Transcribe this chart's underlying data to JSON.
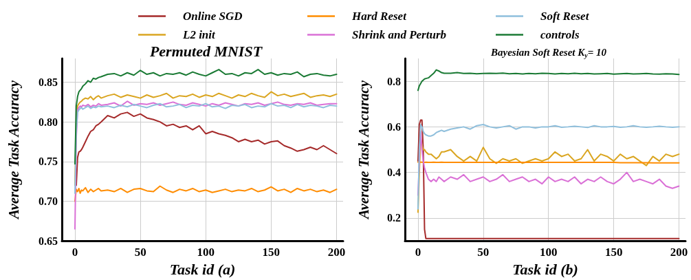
{
  "chart_data": [
    {
      "type": "line",
      "title": "Permuted MNIST",
      "xlabel": "Task id (a)",
      "ylabel": "Average Task Accuracy",
      "x": [
        0,
        1,
        2,
        3,
        4,
        5,
        6,
        8,
        10,
        12,
        14,
        16,
        18,
        20,
        25,
        30,
        35,
        40,
        45,
        50,
        55,
        60,
        65,
        70,
        75,
        80,
        85,
        90,
        95,
        100,
        105,
        110,
        115,
        120,
        125,
        130,
        135,
        140,
        145,
        150,
        155,
        160,
        165,
        170,
        175,
        180,
        185,
        190,
        195,
        200
      ],
      "xlim": [
        -10,
        205
      ],
      "xticks": [
        0,
        50,
        100,
        150,
        200
      ],
      "ylim": [
        0.65,
        0.88
      ],
      "yticks": [
        0.65,
        {
          "value": 0.7,
          "label": "0.70"
        },
        0.75,
        {
          "value": 0.8,
          "label": "0.80"
        },
        0.85
      ],
      "grid": true,
      "legend": "top",
      "marker": "none",
      "line_style": "solid",
      "series": [
        {
          "name": "Online SGD",
          "color": "#a52a2a",
          "values": [
            null,
            0.72,
            0.755,
            0.762,
            0.763,
            0.765,
            0.768,
            0.775,
            0.782,
            0.788,
            0.79,
            0.795,
            0.797,
            0.8,
            0.808,
            0.805,
            0.81,
            0.812,
            0.807,
            0.81,
            0.805,
            0.803,
            0.8,
            0.795,
            0.797,
            0.793,
            0.795,
            0.79,
            0.795,
            0.785,
            0.788,
            0.785,
            0.783,
            0.78,
            0.775,
            0.778,
            0.775,
            0.777,
            0.772,
            0.775,
            0.776,
            0.77,
            0.767,
            0.763,
            0.765,
            0.768,
            0.765,
            0.77,
            0.765,
            0.76
          ]
        },
        {
          "name": "L2 init",
          "color": "#daa520",
          "values": [
            0.72,
            0.8,
            0.82,
            0.823,
            0.825,
            0.826,
            0.828,
            0.83,
            0.829,
            0.832,
            0.828,
            0.831,
            0.833,
            0.83,
            0.833,
            0.835,
            0.831,
            0.834,
            0.832,
            0.83,
            0.834,
            0.831,
            0.833,
            0.836,
            0.83,
            0.833,
            0.832,
            0.835,
            0.831,
            0.834,
            0.832,
            0.836,
            0.833,
            0.83,
            0.834,
            0.832,
            0.836,
            0.833,
            0.831,
            0.838,
            0.833,
            0.835,
            0.832,
            0.834,
            0.836,
            0.831,
            0.833,
            0.834,
            0.832,
            0.835
          ]
        },
        {
          "name": "Hard Reset",
          "color": "#ff8c00",
          "values": [
            0.7,
            0.715,
            0.712,
            0.716,
            0.71,
            0.714,
            0.713,
            0.717,
            0.711,
            0.715,
            0.712,
            0.714,
            0.716,
            0.713,
            0.714,
            0.712,
            0.716,
            0.711,
            0.715,
            0.716,
            0.713,
            0.712,
            0.719,
            0.714,
            0.711,
            0.715,
            0.713,
            0.716,
            0.712,
            0.714,
            0.711,
            0.713,
            0.715,
            0.712,
            0.714,
            0.713,
            0.716,
            0.712,
            0.714,
            0.718,
            0.713,
            0.715,
            0.711,
            0.716,
            0.713,
            0.715,
            0.712,
            0.714,
            0.711,
            0.715
          ]
        },
        {
          "name": "Shrink and Perturb",
          "color": "#da70d6",
          "values": [
            0.665,
            0.78,
            0.815,
            0.818,
            0.82,
            0.819,
            0.821,
            0.82,
            0.822,
            0.819,
            0.821,
            0.82,
            0.823,
            0.821,
            0.822,
            0.824,
            0.82,
            0.826,
            0.821,
            0.823,
            0.822,
            0.824,
            0.821,
            0.823,
            0.825,
            0.822,
            0.821,
            0.824,
            0.822,
            0.82,
            0.823,
            0.821,
            0.824,
            0.822,
            0.82,
            0.823,
            0.822,
            0.824,
            0.821,
            0.823,
            0.825,
            0.822,
            0.821,
            0.823,
            0.822,
            0.824,
            0.821,
            0.822,
            0.823,
            0.823
          ]
        },
        {
          "name": "Soft Reset",
          "color": "#8fbfdc",
          "values": [
            0.71,
            0.79,
            0.812,
            0.815,
            0.817,
            0.818,
            0.816,
            0.818,
            0.82,
            0.817,
            0.819,
            0.818,
            0.82,
            0.819,
            0.82,
            0.818,
            0.821,
            0.819,
            0.822,
            0.82,
            0.818,
            0.821,
            0.823,
            0.819,
            0.82,
            0.822,
            0.818,
            0.821,
            0.82,
            0.823,
            0.819,
            0.82,
            0.817,
            0.821,
            0.82,
            0.822,
            0.818,
            0.82,
            0.819,
            0.823,
            0.82,
            0.821,
            0.818,
            0.822,
            0.819,
            0.821,
            0.82,
            0.818,
            0.821,
            0.82
          ]
        },
        {
          "name": "controls",
          "color": "#1a7a34",
          "values": [
            0.747,
            0.82,
            0.832,
            0.838,
            0.84,
            0.842,
            0.845,
            0.848,
            0.852,
            0.85,
            0.855,
            0.854,
            0.856,
            0.857,
            0.86,
            0.861,
            0.858,
            0.862,
            0.859,
            0.865,
            0.86,
            0.862,
            0.858,
            0.861,
            0.86,
            0.862,
            0.859,
            0.863,
            0.86,
            0.858,
            0.862,
            0.866,
            0.86,
            0.861,
            0.858,
            0.862,
            0.861,
            0.866,
            0.86,
            0.862,
            0.859,
            0.861,
            0.86,
            0.863,
            0.857,
            0.86,
            0.861,
            0.859,
            0.858,
            0.86
          ]
        }
      ]
    },
    {
      "type": "line",
      "title": "Bayesian Soft Reset K$_{y}$= 10",
      "xlabel": "Task id (b)",
      "ylabel": "Average Task Accuracy",
      "x": [
        0,
        1,
        2,
        3,
        4,
        5,
        6,
        8,
        10,
        12,
        14,
        16,
        18,
        20,
        25,
        30,
        35,
        40,
        45,
        50,
        55,
        60,
        65,
        70,
        75,
        80,
        85,
        90,
        95,
        100,
        105,
        110,
        115,
        120,
        125,
        130,
        135,
        140,
        145,
        150,
        155,
        160,
        165,
        170,
        175,
        180,
        185,
        190,
        195,
        200
      ],
      "xlim": [
        -10,
        205
      ],
      "xticks": [
        0,
        50,
        100,
        150,
        200
      ],
      "ylim": [
        0.1,
        0.9
      ],
      "yticks": [
        0.2,
        0.4,
        0.6,
        0.8
      ],
      "grid": true,
      "legend": "top",
      "marker": "none",
      "line_style": "solid",
      "series": [
        {
          "name": "Online SGD",
          "color": "#a52a2a",
          "values": [
            0.45,
            0.61,
            0.63,
            0.63,
            0.5,
            0.15,
            0.11,
            0.11,
            0.11,
            0.11,
            0.11,
            0.11,
            0.11,
            0.11,
            0.11,
            0.11,
            0.11,
            0.11,
            0.11,
            0.11,
            0.11,
            0.11,
            0.11,
            0.11,
            0.11,
            0.11,
            0.11,
            0.11,
            0.11,
            0.11,
            0.11,
            0.11,
            0.11,
            0.11,
            0.11,
            0.11,
            0.11,
            0.11,
            0.11,
            0.11,
            0.11,
            0.11,
            0.11,
            0.11,
            0.11,
            0.11,
            0.11,
            0.11,
            0.11,
            0.11
          ]
        },
        {
          "name": "L2 init",
          "color": "#daa520",
          "values": [
            0.225,
            0.4,
            0.55,
            0.52,
            0.5,
            0.5,
            0.49,
            0.48,
            0.48,
            0.47,
            0.46,
            0.47,
            0.49,
            0.49,
            0.5,
            0.47,
            0.45,
            0.47,
            0.45,
            0.51,
            0.46,
            0.44,
            0.46,
            0.45,
            0.46,
            0.44,
            0.45,
            0.46,
            0.45,
            0.46,
            0.49,
            0.47,
            0.48,
            0.45,
            0.46,
            0.5,
            0.45,
            0.48,
            0.47,
            0.45,
            0.48,
            0.46,
            0.47,
            0.45,
            0.43,
            0.47,
            0.45,
            0.48,
            0.47,
            0.48
          ]
        },
        {
          "name": "Hard Reset",
          "color": "#ff8c00",
          "values": [
            0.445,
            0.445,
            0.445,
            0.445,
            0.444,
            0.444,
            0.445,
            0.444,
            0.444,
            0.445,
            0.444,
            0.444,
            0.445,
            0.444,
            0.444,
            0.444,
            0.444,
            0.444,
            0.444,
            0.444,
            0.444,
            0.444,
            0.444,
            0.444,
            0.444,
            0.444,
            0.444,
            0.444,
            0.444,
            0.444,
            0.444,
            0.444,
            0.444,
            0.444,
            0.444,
            0.444,
            0.444,
            0.444,
            0.444,
            0.444,
            0.443,
            0.443,
            0.443,
            0.443,
            0.443,
            0.442,
            0.442,
            0.442,
            0.442,
            0.442
          ]
        },
        {
          "name": "Shrink and Perturb",
          "color": "#da70d6",
          "values": [
            0.3,
            0.45,
            0.58,
            0.5,
            0.45,
            0.42,
            0.4,
            0.37,
            0.36,
            0.37,
            0.36,
            0.38,
            0.37,
            0.36,
            0.38,
            0.37,
            0.39,
            0.36,
            0.37,
            0.38,
            0.36,
            0.37,
            0.39,
            0.36,
            0.37,
            0.38,
            0.36,
            0.37,
            0.35,
            0.38,
            0.36,
            0.37,
            0.36,
            0.38,
            0.35,
            0.37,
            0.36,
            0.38,
            0.36,
            0.35,
            0.37,
            0.4,
            0.36,
            0.37,
            0.36,
            0.35,
            0.37,
            0.34,
            0.33,
            0.34
          ]
        },
        {
          "name": "Soft Reset",
          "color": "#8fbfdc",
          "values": [
            0.24,
            0.5,
            0.61,
            0.6,
            0.58,
            0.57,
            0.565,
            0.56,
            0.56,
            0.565,
            0.575,
            0.58,
            0.585,
            0.58,
            0.59,
            0.595,
            0.6,
            0.59,
            0.605,
            0.61,
            0.6,
            0.595,
            0.6,
            0.605,
            0.59,
            0.6,
            0.6,
            0.595,
            0.6,
            0.6,
            0.605,
            0.598,
            0.6,
            0.603,
            0.6,
            0.597,
            0.605,
            0.6,
            0.6,
            0.602,
            0.598,
            0.6,
            0.605,
            0.6,
            0.598,
            0.6,
            0.603,
            0.6,
            0.598,
            0.6
          ]
        },
        {
          "name": "controls",
          "color": "#1a7a34",
          "values": [
            0.76,
            0.78,
            0.79,
            0.8,
            0.805,
            0.81,
            0.812,
            0.815,
            0.825,
            0.835,
            0.85,
            0.845,
            0.838,
            0.835,
            0.835,
            0.838,
            0.834,
            0.835,
            0.833,
            0.834,
            0.835,
            0.834,
            0.836,
            0.833,
            0.834,
            0.832,
            0.834,
            0.833,
            0.835,
            0.834,
            0.832,
            0.834,
            0.833,
            0.835,
            0.833,
            0.834,
            0.832,
            0.833,
            0.834,
            0.831,
            0.833,
            0.834,
            0.832,
            0.833,
            0.834,
            0.832,
            0.831,
            0.833,
            0.832,
            0.83
          ]
        }
      ]
    }
  ]
}
